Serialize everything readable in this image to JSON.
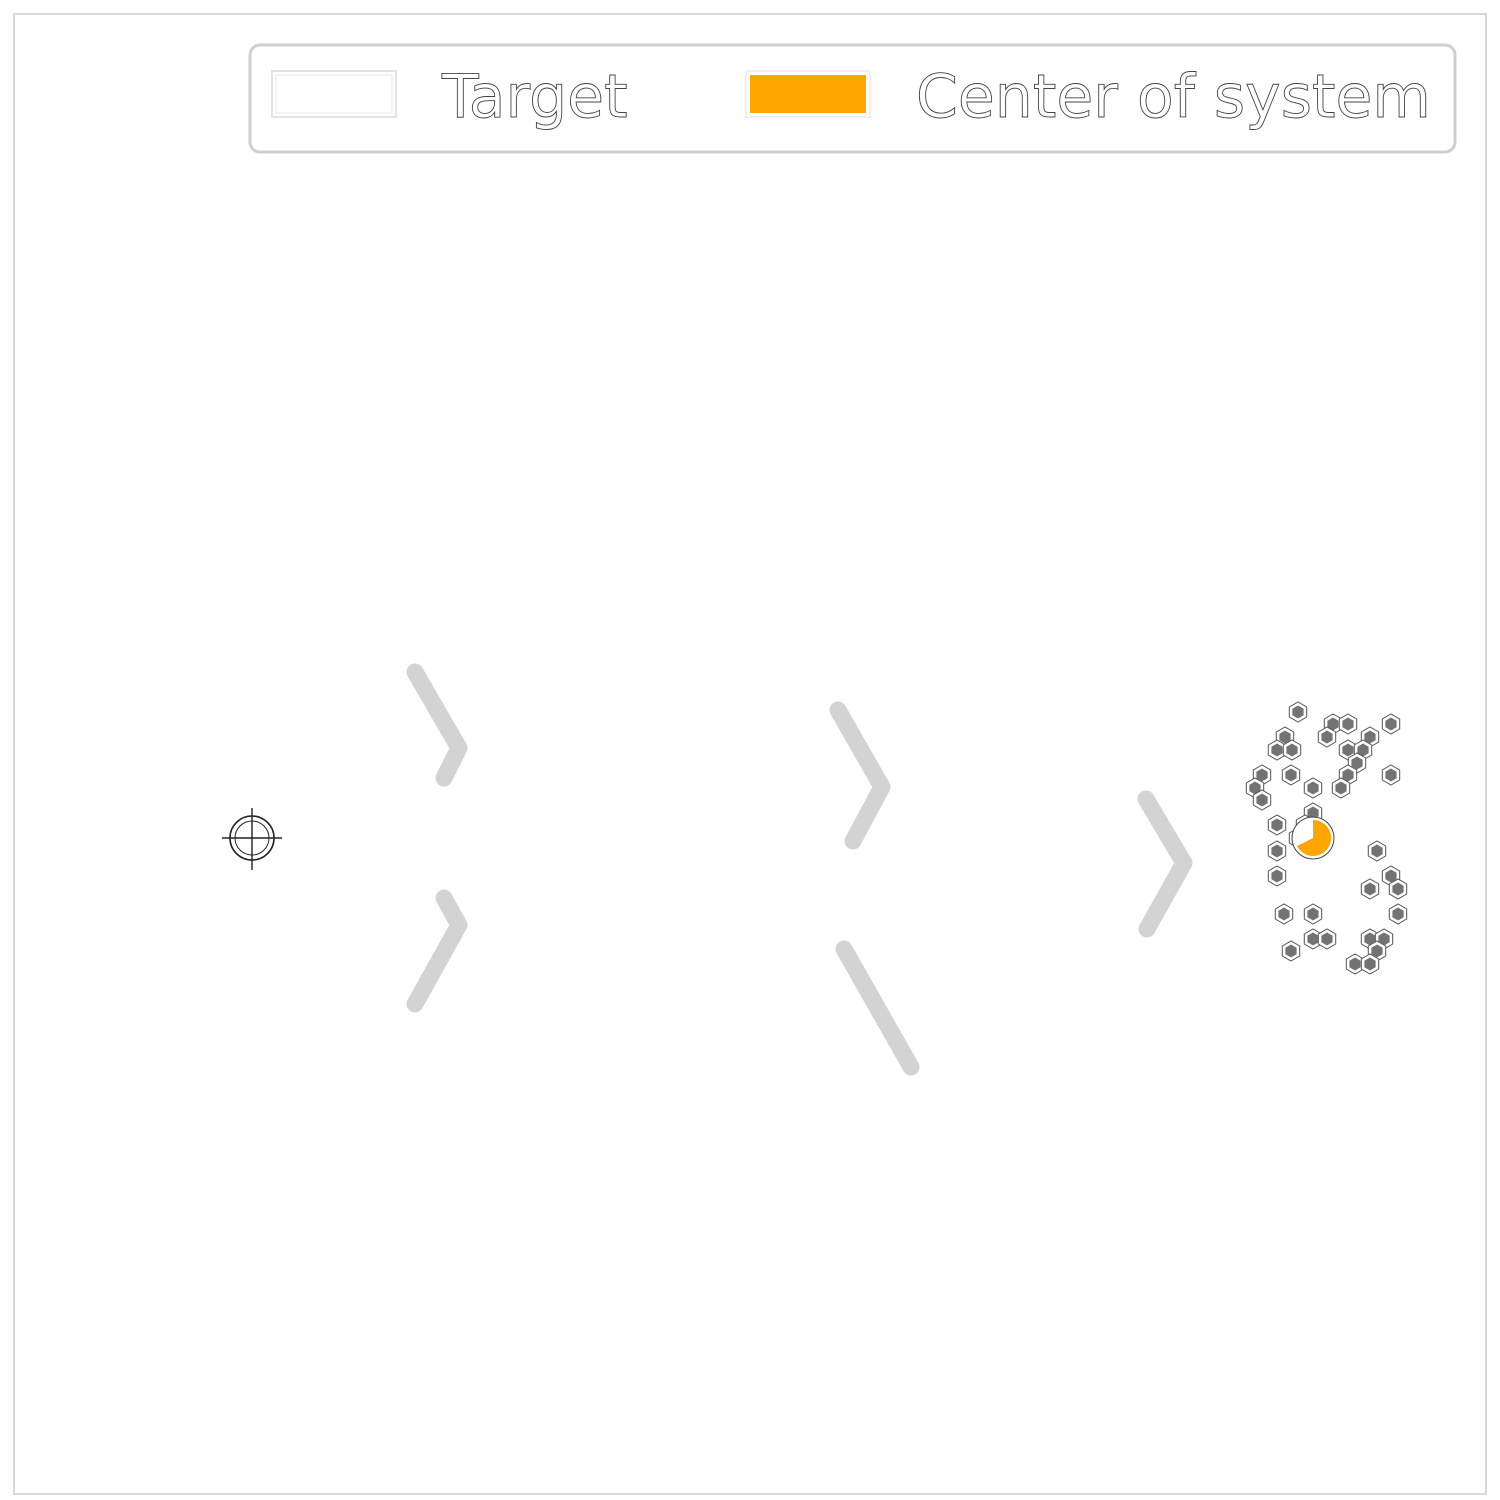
{
  "legend": {
    "items": [
      {
        "label": "Target",
        "swatch_color": "#ffffff"
      },
      {
        "label": "Center of system",
        "swatch_color": "#ffa500"
      }
    ]
  },
  "colors": {
    "background": "#ffffff",
    "frame": "#d9d9d9",
    "chevron": "#d3d3d3",
    "cell_fill": "#737373",
    "cell_stroke": "#ffffff",
    "center": "#ffa500"
  },
  "icons": {
    "target": "crosshair-icon",
    "system_center": "orange-pie-marker",
    "agent": "hexagon-cell",
    "obstacle": "chevron-wall"
  }
}
